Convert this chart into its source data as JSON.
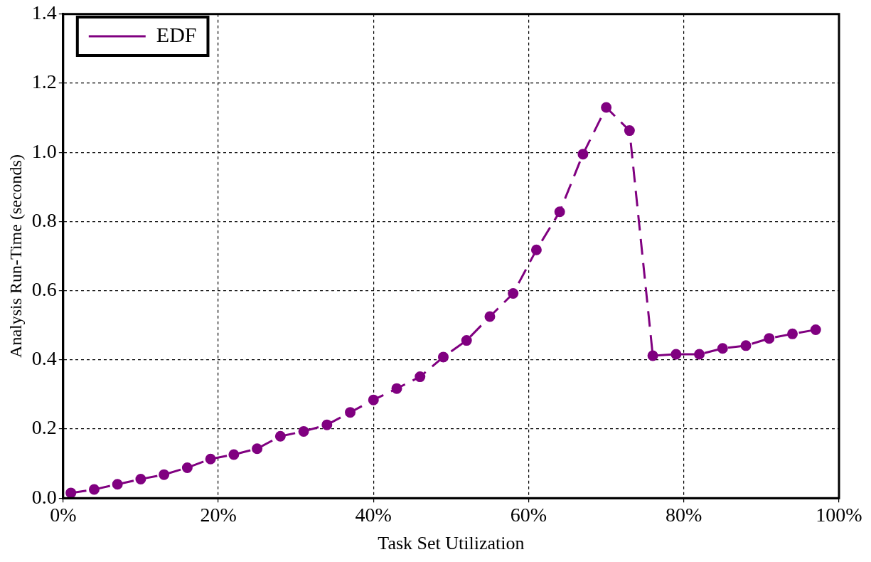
{
  "chart_data": {
    "type": "line",
    "xlabel": "Task Set Utilization",
    "ylabel": "Analysis Run-Time (seconds)",
    "xlim": [
      0,
      100
    ],
    "xticks": [
      {
        "value": 0,
        "label": "0%"
      },
      {
        "value": 20,
        "label": "20%"
      },
      {
        "value": 40,
        "label": "40%"
      },
      {
        "value": 60,
        "label": "60%"
      },
      {
        "value": 80,
        "label": "80%"
      },
      {
        "value": 100,
        "label": "100%"
      }
    ],
    "ylim": [
      0,
      1.4
    ],
    "yticks": [
      {
        "value": 0,
        "label": "0.0"
      },
      {
        "value": 0.2,
        "label": "0.2"
      },
      {
        "value": 0.4,
        "label": "0.4"
      },
      {
        "value": 0.6,
        "label": "0.6"
      },
      {
        "value": 0.8,
        "label": "0.8"
      },
      {
        "value": 1.0,
        "label": "1.0"
      },
      {
        "value": 1.2,
        "label": "1.2"
      },
      {
        "value": 1.4,
        "label": "1.4"
      }
    ],
    "grid": true,
    "legend": "top left",
    "marker": "circle",
    "line_style": "dashed",
    "x": [
      1,
      4,
      7,
      10,
      13,
      16,
      19,
      22,
      25,
      28,
      31,
      34,
      37,
      40,
      43,
      46,
      49,
      52,
      55,
      58,
      61,
      64,
      67,
      70,
      73,
      76,
      79,
      82,
      85,
      88,
      91,
      94,
      97
    ],
    "series": [
      {
        "name": "EDF",
        "color": "#800080",
        "values": [
          0.015,
          0.025,
          0.04,
          0.055,
          0.068,
          0.088,
          0.113,
          0.126,
          0.143,
          0.179,
          0.193,
          0.212,
          0.248,
          0.284,
          0.317,
          0.351,
          0.408,
          0.456,
          0.525,
          0.592,
          0.718,
          0.828,
          0.995,
          1.13,
          1.063,
          0.412,
          0.416,
          0.416,
          0.433,
          0.441,
          0.462,
          0.475,
          0.487
        ]
      }
    ]
  }
}
